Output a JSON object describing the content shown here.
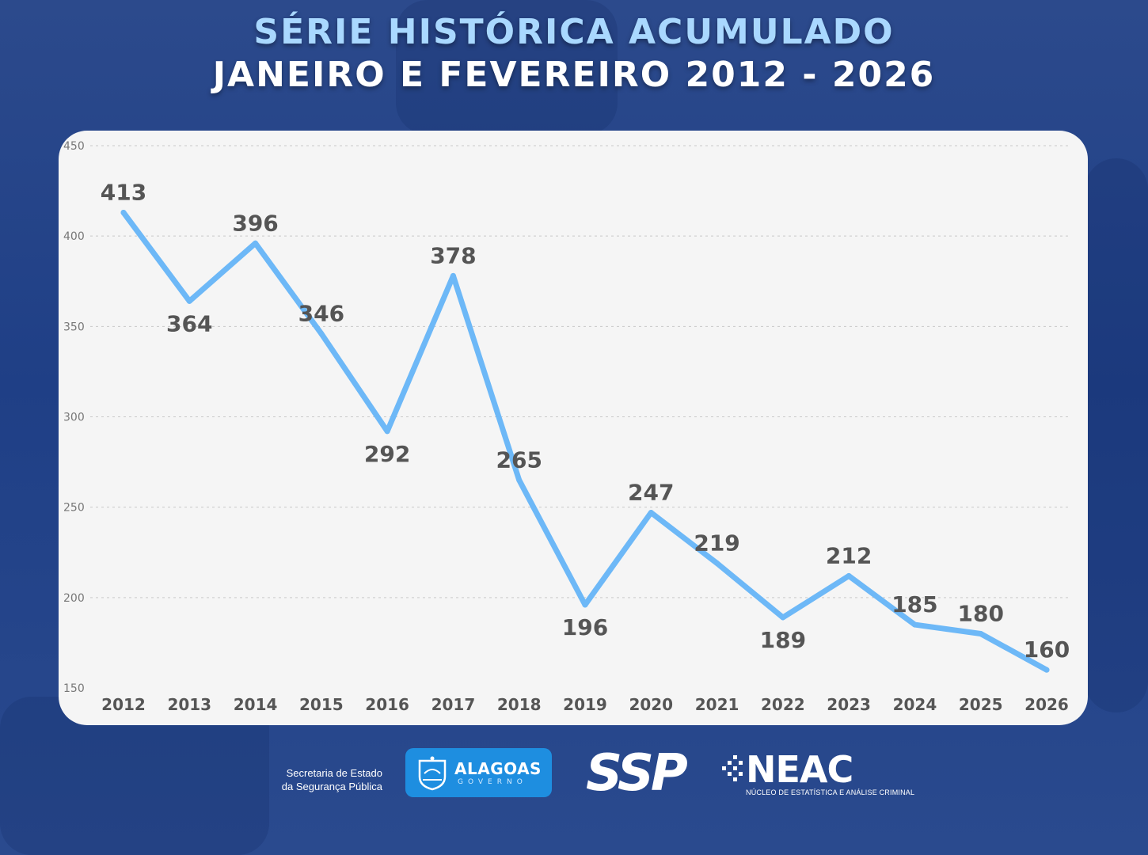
{
  "header": {
    "title_line1": "SÉRIE HISTÓRICA ACUMULADO",
    "title_line2": "JANEIRO E FEVEREIRO 2012 - 2026"
  },
  "colors": {
    "line": "#6db8f7",
    "title_accent": "#a9d8ff",
    "background": "#1f3f86",
    "card": "#f5f5f5",
    "label": "#555555"
  },
  "chart_data": {
    "type": "line",
    "categories": [
      "2012",
      "2013",
      "2014",
      "2015",
      "2016",
      "2017",
      "2018",
      "2019",
      "2020",
      "2021",
      "2022",
      "2023",
      "2024",
      "2025",
      "2026"
    ],
    "series": [
      {
        "values": [
          413,
          364,
          396,
          346,
          292,
          378,
          265,
          196,
          247,
          219,
          189,
          212,
          185,
          180,
          160
        ]
      }
    ],
    "ylim": [
      150,
      450
    ],
    "yticks": [
      150,
      200,
      250,
      300,
      350,
      400,
      450
    ],
    "grid": true,
    "data_labels": true
  },
  "footer": {
    "secretaria_line1": "Secretaria de Estado",
    "secretaria_line2": "da Segurança Pública",
    "alagoas_name": "ALAGOAS",
    "alagoas_sub": "GOVERNO",
    "ssp": "SSP",
    "neac_name": "NEAC",
    "neac_sub": "NÚCLEO DE ESTATÍSTICA E ANÁLISE CRIMINAL"
  }
}
